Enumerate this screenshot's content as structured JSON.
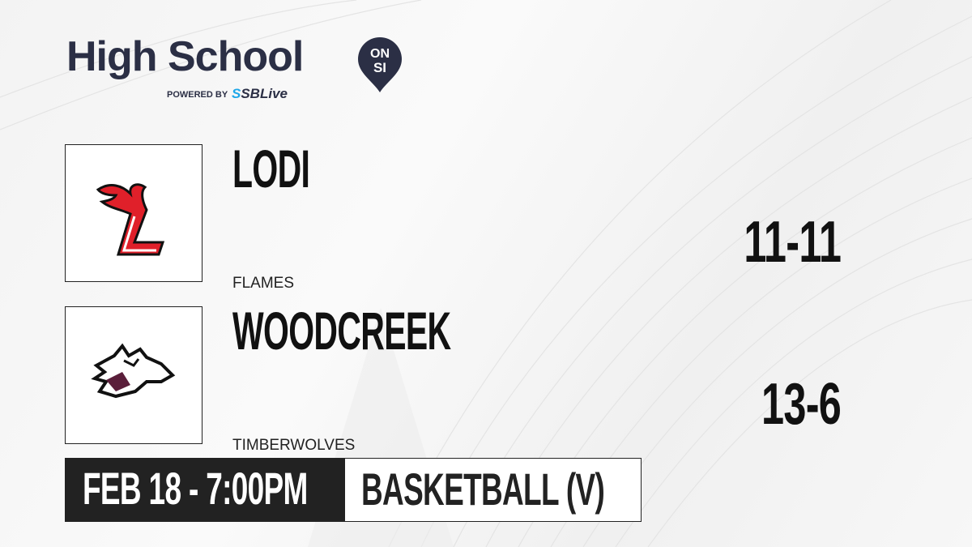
{
  "brand": {
    "title": "High School",
    "badge": "ON SI",
    "powered_by": "POWERED BY",
    "partner": "SBLive",
    "color": "#2b2f45",
    "partner_color": "#1ea7e8"
  },
  "teams": [
    {
      "name": "LODI",
      "mascot": "FLAMES",
      "record": "11-11",
      "logo_icon": "flaming-l-logo",
      "logo_color": "#e0202a"
    },
    {
      "name": "WOODCREEK",
      "mascot": "TIMBERWOLVES",
      "record": "13-6",
      "logo_icon": "timberwolf-logo",
      "logo_color": "#5a1e3a"
    }
  ],
  "game": {
    "datetime": "FEB 18 - 7:00PM",
    "sport": "BASKETBALL (V)"
  }
}
